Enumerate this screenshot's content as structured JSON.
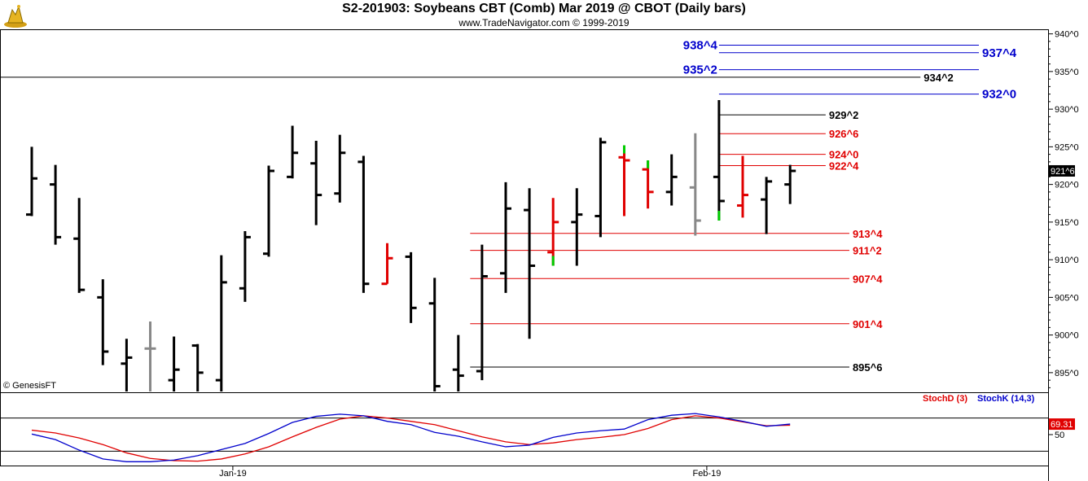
{
  "header": {
    "title": "S2-201903:  Soybeans CBT (Comb) Mar 2019 @ CBOT  (Daily bars)",
    "subtitle": "www.TradeNavigator.com © 1999-2019"
  },
  "copyright": "© GenesisFT",
  "colors": {
    "bar_black": "#000000",
    "bar_red": "#e00000",
    "bar_gray": "#888888",
    "bar_green_tick": "#00cc00",
    "level_blue": "#0000cc",
    "level_red": "#e00000",
    "level_black": "#000000",
    "stoch_d": "#e00000",
    "stoch_k": "#0000cc",
    "last_price_bg": "#000000",
    "stoch_last_bg": "#e00000"
  },
  "chart_data": [
    {
      "type": "ohlc",
      "price_axis": {
        "ticks": [
          "940^0",
          "935^0",
          "930^0",
          "925^0",
          "920^0",
          "915^0",
          "910^0",
          "905^0",
          "900^0",
          "895^0"
        ],
        "tick_values": [
          940,
          935,
          930,
          925,
          920,
          915,
          910,
          905,
          900,
          895
        ],
        "range": [
          892.5,
          940.5
        ]
      },
      "x_labels": [
        {
          "label": "Jan-19",
          "index": 9
        },
        {
          "label": "Feb-19",
          "index": 29
        }
      ],
      "last_price_label": "921^6",
      "bars": [
        {
          "high": 925.0,
          "low": 915.8,
          "open": 916.0,
          "close": 920.8,
          "color": "black"
        },
        {
          "high": 922.6,
          "low": 912.0,
          "open": 920.0,
          "close": 913.0,
          "color": "black"
        },
        {
          "high": 918.2,
          "low": 905.6,
          "open": 912.8,
          "close": 906.0,
          "color": "black"
        },
        {
          "high": 907.4,
          "low": 896.0,
          "open": 905.0,
          "close": 897.8,
          "color": "black"
        },
        {
          "high": 899.5,
          "low": 892.5,
          "open": 896.2,
          "close": 897.0,
          "color": "black"
        },
        {
          "high": 901.8,
          "low": 892.5,
          "open": 898.2,
          "close": 898.2,
          "color": "gray"
        },
        {
          "high": 899.8,
          "low": 892.5,
          "open": 894.0,
          "close": 895.4,
          "color": "black"
        },
        {
          "high": 898.8,
          "low": 892.5,
          "open": 898.6,
          "close": 895.0,
          "color": "black"
        },
        {
          "high": 910.6,
          "low": 892.5,
          "open": 894.0,
          "close": 907.0,
          "color": "black"
        },
        {
          "high": 913.8,
          "low": 904.4,
          "open": 906.2,
          "close": 913.0,
          "color": "black"
        },
        {
          "high": 922.5,
          "low": 910.4,
          "open": 910.8,
          "close": 921.8,
          "color": "black"
        },
        {
          "high": 927.8,
          "low": 920.8,
          "open": 921.0,
          "close": 924.2,
          "color": "black"
        },
        {
          "high": 925.8,
          "low": 914.6,
          "open": 922.8,
          "close": 918.6,
          "color": "black"
        },
        {
          "high": 926.6,
          "low": 917.6,
          "open": 918.8,
          "close": 924.2,
          "color": "black"
        },
        {
          "high": 923.8,
          "low": 905.6,
          "open": 923.0,
          "close": 906.8,
          "color": "black"
        },
        {
          "high": 912.2,
          "low": 906.8,
          "open": 906.8,
          "close": 910.2,
          "color": "red"
        },
        {
          "high": 911.0,
          "low": 901.6,
          "open": 910.4,
          "close": 903.6,
          "color": "black"
        },
        {
          "high": 907.6,
          "low": 892.5,
          "open": 904.2,
          "close": 893.2,
          "color": "black"
        },
        {
          "high": 900.0,
          "low": 892.5,
          "open": 895.4,
          "close": 894.6,
          "color": "black"
        },
        {
          "high": 912.0,
          "low": 894.0,
          "open": 895.2,
          "close": 907.8,
          "color": "black"
        },
        {
          "high": 920.3,
          "low": 905.6,
          "open": 908.2,
          "close": 916.8,
          "color": "black"
        },
        {
          "high": 919.5,
          "low": 899.5,
          "open": 916.6,
          "close": 909.2,
          "color": "black"
        },
        {
          "high": 918.2,
          "low": 909.2,
          "open": 911.0,
          "close": 915.0,
          "color": "red",
          "green_low": true
        },
        {
          "high": 919.5,
          "low": 909.2,
          "open": 915.0,
          "close": 916.0,
          "color": "black"
        },
        {
          "high": 926.2,
          "low": 913.0,
          "open": 915.8,
          "close": 925.6,
          "color": "black"
        },
        {
          "high": 925.2,
          "low": 915.8,
          "open": 923.6,
          "close": 923.2,
          "color": "red",
          "green_high": true
        },
        {
          "high": 923.2,
          "low": 916.8,
          "open": 922.0,
          "close": 919.0,
          "color": "red",
          "green_high": true
        },
        {
          "high": 924.0,
          "low": 917.2,
          "open": 919.0,
          "close": 921.0,
          "color": "black"
        },
        {
          "high": 926.8,
          "low": 913.2,
          "open": 919.6,
          "close": 915.2,
          "color": "gray"
        },
        {
          "high": 931.2,
          "low": 915.2,
          "open": 921.0,
          "close": 917.8,
          "color": "black",
          "green_low": true
        },
        {
          "high": 923.8,
          "low": 915.6,
          "open": 917.2,
          "close": 918.6,
          "color": "red"
        },
        {
          "high": 921.0,
          "low": 913.4,
          "open": 918.0,
          "close": 920.4,
          "color": "black"
        },
        {
          "high": 922.6,
          "low": 917.4,
          "open": 920.0,
          "close": 921.8,
          "color": "black"
        }
      ],
      "levels": [
        {
          "label": "938^4",
          "price": 938.5,
          "color": "blue",
          "label_side": "left",
          "from": 29,
          "to": 40
        },
        {
          "label": "937^4",
          "price": 937.5,
          "color": "blue",
          "label_side": "right",
          "from": 29,
          "to": 40
        },
        {
          "label": "935^2",
          "price": 935.25,
          "color": "blue",
          "label_side": "left",
          "from": 29,
          "to": 40
        },
        {
          "label": "934^2",
          "price": 934.25,
          "color": "black",
          "label_side": "right",
          "from": -2,
          "to": 37.5
        },
        {
          "label": "932^0",
          "price": 932.0,
          "color": "blue",
          "label_side": "right",
          "from": 29,
          "to": 40
        },
        {
          "label": "929^2",
          "price": 929.25,
          "color": "black",
          "label_side": "right",
          "from": 29,
          "to": 33.5
        },
        {
          "label": "926^6",
          "price": 926.75,
          "color": "red",
          "label_side": "right",
          "from": 29,
          "to": 33.5
        },
        {
          "label": "924^0",
          "price": 924.0,
          "color": "red",
          "label_side": "right",
          "from": 29,
          "to": 33.5
        },
        {
          "label": "922^4",
          "price": 922.5,
          "color": "red",
          "label_side": "right",
          "from": 29,
          "to": 33.5
        },
        {
          "label": "913^4",
          "price": 913.5,
          "color": "red",
          "label_side": "right",
          "from": 18.5,
          "to": 34.5
        },
        {
          "label": "911^2",
          "price": 911.25,
          "color": "red",
          "label_side": "right",
          "from": 18.5,
          "to": 34.5
        },
        {
          "label": "907^4",
          "price": 907.5,
          "color": "red",
          "label_side": "right",
          "from": 18.5,
          "to": 34.5
        },
        {
          "label": "901^4",
          "price": 901.5,
          "color": "red",
          "label_side": "right",
          "from": 18.5,
          "to": 34.5
        },
        {
          "label": "895^6",
          "price": 895.75,
          "color": "black",
          "label_side": "right",
          "from": 18.5,
          "to": 34.5
        }
      ]
    },
    {
      "type": "line",
      "legend": [
        {
          "name": "StochD (3)",
          "color": "red"
        },
        {
          "name": "StochK (14,3)",
          "color": "blue"
        }
      ],
      "y_ticks": [
        "50"
      ],
      "last_value_label": "69.31",
      "series": [
        {
          "name": "StochD (3)",
          "values": [
            58,
            53,
            44,
            32,
            17,
            7,
            3,
            2,
            6,
            15,
            28,
            46,
            63,
            78,
            84,
            80,
            74,
            68,
            57,
            46,
            37,
            32,
            35,
            41,
            45,
            50,
            61,
            77,
            84,
            80,
            73,
            66,
            67
          ]
        },
        {
          "name": "StochK (14,3)",
          "values": [
            51,
            41,
            22,
            6,
            1,
            1,
            4,
            12,
            23,
            34,
            52,
            72,
            83,
            87,
            84,
            74,
            68,
            54,
            47,
            37,
            28,
            31,
            45,
            53,
            57,
            60,
            77,
            85,
            88,
            82,
            74,
            65,
            69
          ]
        }
      ]
    }
  ]
}
